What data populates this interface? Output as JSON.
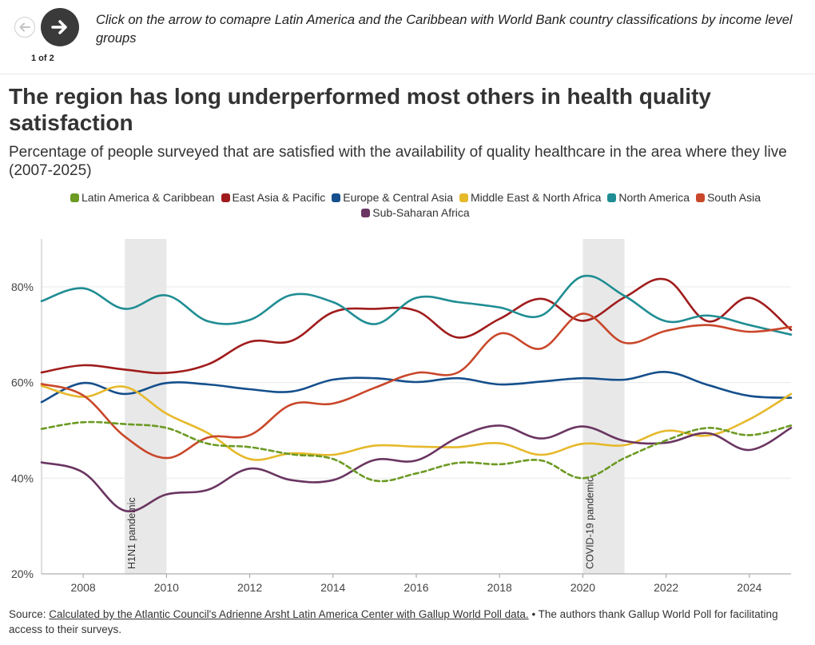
{
  "nav": {
    "prev_icon": "arrow-left-icon",
    "next_icon": "arrow-right-icon",
    "pager": "1 of 2",
    "instruction": "Click on the arrow to comapre Latin America and the Caribbean with World Bank country classifications by income level groups"
  },
  "chart_data": {
    "type": "line",
    "title": "The region has long underperformed most others in health quality satisfaction",
    "subtitle": "Percentage of people surveyed that are satisfied with the availability of quality healthcare in the area where they live (2007-2025)",
    "xlabel": "",
    "ylabel": "",
    "xlim": [
      2007,
      2025
    ],
    "ylim": [
      20,
      90
    ],
    "x_ticks": [
      2008,
      2010,
      2012,
      2014,
      2016,
      2018,
      2020,
      2022,
      2024
    ],
    "y_ticks": [
      20,
      40,
      60,
      80
    ],
    "y_tick_suffix": "%",
    "grid": "horizontal",
    "legend_position": "top",
    "x": [
      2007,
      2008,
      2009,
      2010,
      2011,
      2012,
      2013,
      2014,
      2015,
      2016,
      2017,
      2018,
      2019,
      2020,
      2021,
      2022,
      2023,
      2024,
      2025
    ],
    "series": [
      {
        "name": "Latin America & Caribbean",
        "color": "#6c9a23",
        "dashed": true,
        "values": [
          50.3,
          51.7,
          51.3,
          50.5,
          47.2,
          46.5,
          45.0,
          44.0,
          39.5,
          41.0,
          43.2,
          42.9,
          43.7,
          40.0,
          44.2,
          47.9,
          50.5,
          49.0,
          51.0
        ]
      },
      {
        "name": "East Asia & Pacific",
        "color": "#a01c1c",
        "values": [
          62.1,
          63.6,
          62.7,
          62.0,
          63.8,
          68.5,
          68.7,
          74.7,
          75.4,
          75.0,
          69.4,
          73.3,
          77.5,
          72.9,
          77.8,
          81.5,
          72.8,
          77.7,
          71.0
        ]
      },
      {
        "name": "Europe & Central Asia",
        "color": "#154f8c",
        "values": [
          55.9,
          59.9,
          57.6,
          59.9,
          59.6,
          58.6,
          58.1,
          60.6,
          60.9,
          60.1,
          60.9,
          59.6,
          60.2,
          60.9,
          60.6,
          62.2,
          59.5,
          57.2,
          56.8
        ]
      },
      {
        "name": "Middle East & North Africa",
        "color": "#e6b92b",
        "values": [
          59.3,
          57.0,
          59.1,
          53.5,
          49.4,
          44.0,
          45.2,
          44.9,
          46.8,
          46.6,
          46.5,
          47.3,
          44.9,
          47.2,
          46.9,
          49.9,
          48.9,
          52.3,
          57.6
        ]
      },
      {
        "name": "North America",
        "color": "#1f8d93",
        "values": [
          77.0,
          79.7,
          75.4,
          78.2,
          72.8,
          73.1,
          78.3,
          76.8,
          72.2,
          77.7,
          76.8,
          75.7,
          74.0,
          82.2,
          78.1,
          72.8,
          74.0,
          72.0,
          70.0
        ]
      },
      {
        "name": "South Asia",
        "color": "#c9472a",
        "values": [
          59.7,
          57.3,
          48.7,
          44.2,
          48.5,
          49.0,
          55.4,
          55.6,
          58.9,
          62.0,
          62.1,
          70.2,
          67.1,
          74.4,
          68.3,
          70.8,
          72.0,
          70.6,
          71.6
        ]
      },
      {
        "name": "Sub-Saharan Africa",
        "color": "#6a3561",
        "values": [
          43.3,
          41.2,
          33.2,
          36.6,
          37.6,
          42.0,
          39.6,
          39.6,
          43.8,
          43.7,
          48.5,
          51.0,
          48.3,
          50.8,
          47.8,
          47.4,
          49.4,
          45.9,
          50.5
        ]
      }
    ],
    "annotations": [
      {
        "label": "H1N1 pandemic",
        "x_start": 2009,
        "x_end": 2010
      },
      {
        "label": "COVID-19 pandemic",
        "x_start": 2020,
        "x_end": 2021
      }
    ]
  },
  "source": {
    "prefix": "Source: ",
    "link_text": "Calculated by the Atlantic Council's Adrienne Arsht Latin America Center with Gallup World Poll data.",
    "suffix": " • The authors thank Gallup World Poll for facilitating access to their surveys."
  }
}
